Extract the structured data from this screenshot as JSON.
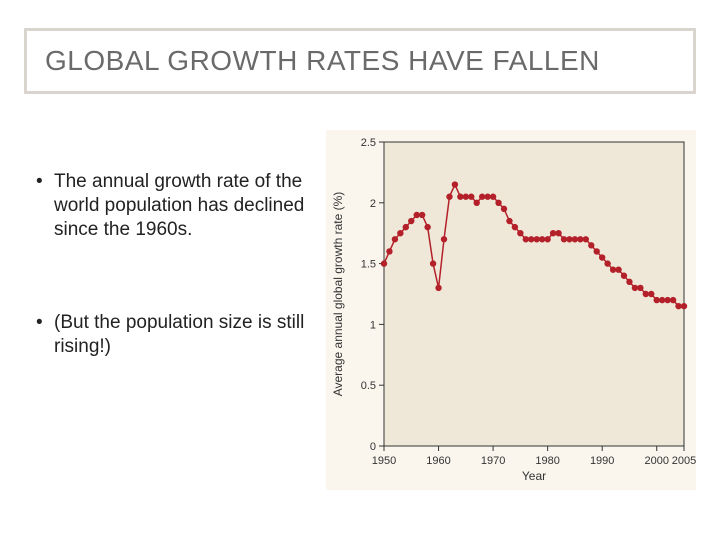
{
  "title": "GLOBAL GROWTH RATES HAVE FALLEN",
  "bullets": [
    "The annual growth rate of the world population has declined since the 1960s.",
    "(But the population size is still rising!)"
  ],
  "chart": {
    "type": "line",
    "xlabel": "Year",
    "ylabel": "Average annual global growth rate (%)",
    "xlim": [
      1950,
      2005
    ],
    "ylim": [
      0,
      2.5
    ],
    "xtick_step": 10,
    "ytick_step": 0.5,
    "xticks": [
      1950,
      1960,
      1970,
      1980,
      1990,
      2000,
      2005
    ],
    "yticks": [
      0,
      0.5,
      1.0,
      1.5,
      2.0,
      2.5
    ],
    "plot_bg": "#efe8d9",
    "frame_bg": "#faf6ee",
    "line_color": "#b4202a",
    "marker_color": "#b4202a",
    "line_width": 1.5,
    "marker_size": 3.2,
    "axis_color": "#333333",
    "label_color": "#333333",
    "label_fontsize": 12,
    "tick_fontsize": 11,
    "series": [
      {
        "x": 1950,
        "y": 1.5
      },
      {
        "x": 1951,
        "y": 1.6
      },
      {
        "x": 1952,
        "y": 1.7
      },
      {
        "x": 1953,
        "y": 1.75
      },
      {
        "x": 1954,
        "y": 1.8
      },
      {
        "x": 1955,
        "y": 1.85
      },
      {
        "x": 1956,
        "y": 1.9
      },
      {
        "x": 1957,
        "y": 1.9
      },
      {
        "x": 1958,
        "y": 1.8
      },
      {
        "x": 1959,
        "y": 1.5
      },
      {
        "x": 1960,
        "y": 1.3
      },
      {
        "x": 1961,
        "y": 1.7
      },
      {
        "x": 1962,
        "y": 2.05
      },
      {
        "x": 1963,
        "y": 2.15
      },
      {
        "x": 1964,
        "y": 2.05
      },
      {
        "x": 1965,
        "y": 2.05
      },
      {
        "x": 1966,
        "y": 2.05
      },
      {
        "x": 1967,
        "y": 2.0
      },
      {
        "x": 1968,
        "y": 2.05
      },
      {
        "x": 1969,
        "y": 2.05
      },
      {
        "x": 1970,
        "y": 2.05
      },
      {
        "x": 1971,
        "y": 2.0
      },
      {
        "x": 1972,
        "y": 1.95
      },
      {
        "x": 1973,
        "y": 1.85
      },
      {
        "x": 1974,
        "y": 1.8
      },
      {
        "x": 1975,
        "y": 1.75
      },
      {
        "x": 1976,
        "y": 1.7
      },
      {
        "x": 1977,
        "y": 1.7
      },
      {
        "x": 1978,
        "y": 1.7
      },
      {
        "x": 1979,
        "y": 1.7
      },
      {
        "x": 1980,
        "y": 1.7
      },
      {
        "x": 1981,
        "y": 1.75
      },
      {
        "x": 1982,
        "y": 1.75
      },
      {
        "x": 1983,
        "y": 1.7
      },
      {
        "x": 1984,
        "y": 1.7
      },
      {
        "x": 1985,
        "y": 1.7
      },
      {
        "x": 1986,
        "y": 1.7
      },
      {
        "x": 1987,
        "y": 1.7
      },
      {
        "x": 1988,
        "y": 1.65
      },
      {
        "x": 1989,
        "y": 1.6
      },
      {
        "x": 1990,
        "y": 1.55
      },
      {
        "x": 1991,
        "y": 1.5
      },
      {
        "x": 1992,
        "y": 1.45
      },
      {
        "x": 1993,
        "y": 1.45
      },
      {
        "x": 1994,
        "y": 1.4
      },
      {
        "x": 1995,
        "y": 1.35
      },
      {
        "x": 1996,
        "y": 1.3
      },
      {
        "x": 1997,
        "y": 1.3
      },
      {
        "x": 1998,
        "y": 1.25
      },
      {
        "x": 1999,
        "y": 1.25
      },
      {
        "x": 2000,
        "y": 1.2
      },
      {
        "x": 2001,
        "y": 1.2
      },
      {
        "x": 2002,
        "y": 1.2
      },
      {
        "x": 2003,
        "y": 1.2
      },
      {
        "x": 2004,
        "y": 1.15
      },
      {
        "x": 2005,
        "y": 1.15
      }
    ]
  }
}
